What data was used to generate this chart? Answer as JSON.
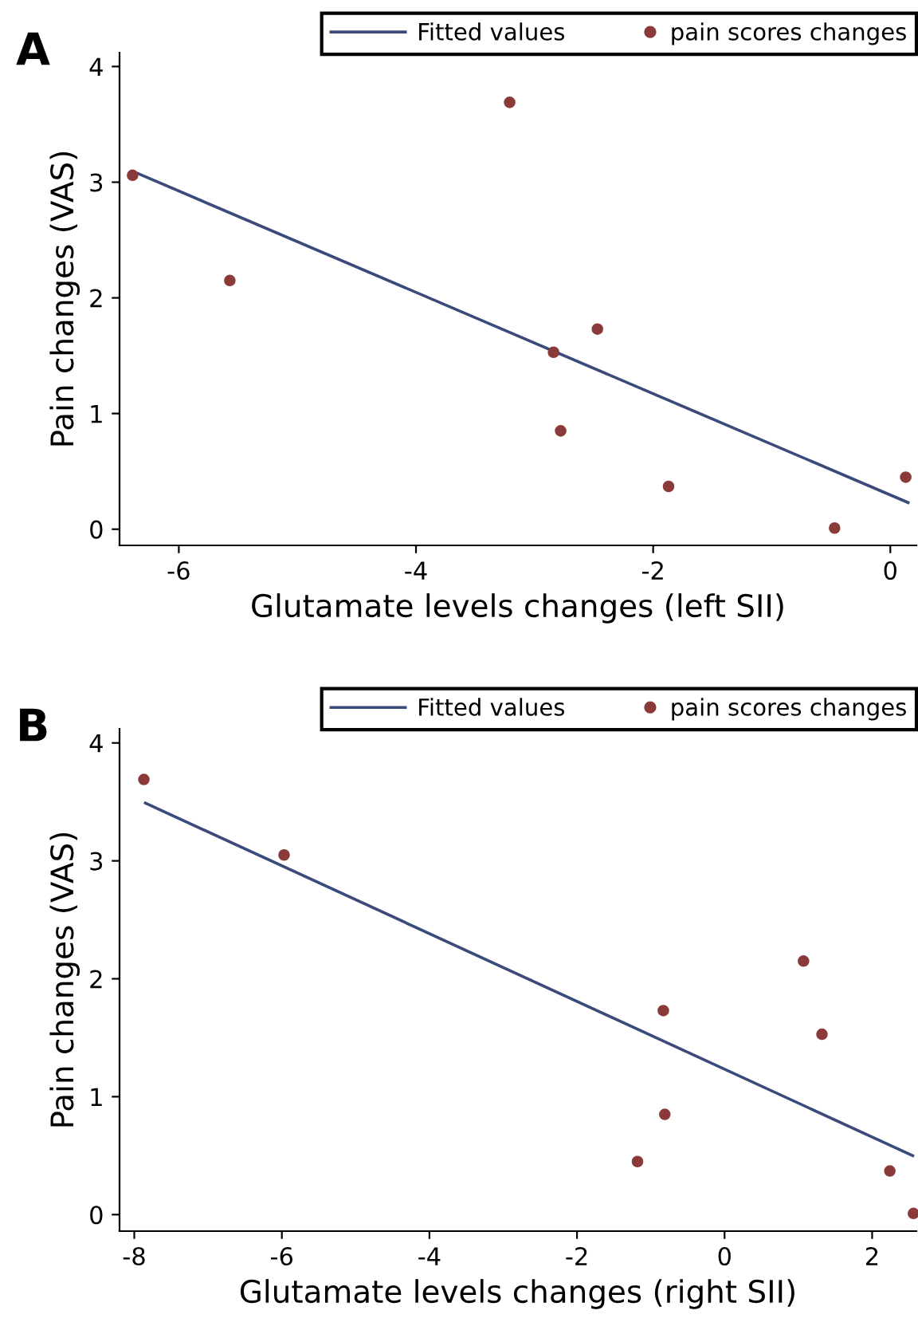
{
  "chart_data": [
    {
      "type": "scatter",
      "xlabel": "Glutamate levels changes (left SII)",
      "ylabel": "Pain changes (VAS)",
      "annotations": [
        "A"
      ],
      "xlim": [
        -6.5,
        0.22
      ],
      "ylim": [
        -0.14,
        4.12
      ],
      "xticks": [
        {
          "value": -6,
          "label": "-6"
        },
        {
          "value": -4,
          "label": "-4"
        },
        {
          "value": -2,
          "label": "-2"
        },
        0
      ],
      "yticks": [
        0,
        1,
        2,
        3,
        4
      ],
      "grid": false,
      "legend": "top right",
      "series": [
        {
          "name": "Fitted values",
          "type": "line",
          "color": "#3b4a7a",
          "x": [
            -6.38,
            0.15
          ],
          "values": [
            3.09,
            0.23
          ],
          "marker": "none"
        },
        {
          "name": "pain scores changes",
          "color": "#8b3a3a",
          "x": [
            -6.39,
            -5.57,
            -3.21,
            -2.84,
            -2.47,
            -2.78,
            -1.87,
            -0.47,
            0.13
          ],
          "values": [
            3.06,
            2.15,
            3.69,
            1.53,
            1.73,
            0.85,
            0.37,
            0.01,
            0.45
          ],
          "marker": "circle"
        }
      ]
    },
    {
      "type": "scatter",
      "xlabel": "Glutamate levels changes (right SII)",
      "ylabel": "Pain changes (VAS)",
      "annotations": [
        "B"
      ],
      "xlim": [
        -8.2,
        2.6
      ],
      "ylim": [
        -0.14,
        4.12
      ],
      "xticks": [
        {
          "value": -8,
          "label": "-8"
        },
        {
          "value": -6,
          "label": "-6"
        },
        {
          "value": -4,
          "label": "-4"
        },
        {
          "value": -2,
          "label": "-2"
        },
        0,
        2
      ],
      "yticks": [
        0,
        1,
        2,
        3,
        4
      ],
      "grid": false,
      "legend": "top right",
      "series": [
        {
          "name": "Fitted values",
          "type": "line",
          "color": "#3b4a7a",
          "x": [
            -7.85,
            2.55
          ],
          "values": [
            3.49,
            0.5
          ],
          "marker": "none"
        },
        {
          "name": "pain scores changes",
          "color": "#8b3a3a",
          "x": [
            -7.87,
            -5.97,
            -0.83,
            -0.81,
            -1.18,
            1.07,
            1.32,
            2.24,
            2.56
          ],
          "values": [
            3.69,
            3.05,
            1.73,
            0.85,
            0.45,
            2.15,
            1.53,
            0.37,
            0.01
          ],
          "marker": "circle"
        }
      ]
    }
  ]
}
